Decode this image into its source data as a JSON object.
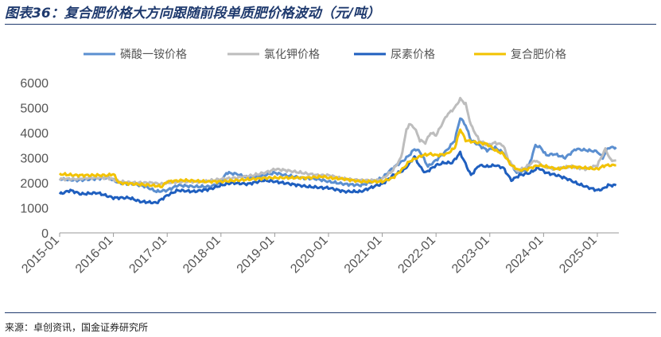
{
  "header": {
    "title": "图表36：复合肥价格大方向跟随前段单质肥价格波动（元/吨）"
  },
  "footer": {
    "source": "来源：卓创资讯，国金证券研究所"
  },
  "chart_data": {
    "type": "line",
    "title": "复合肥价格大方向跟随前段单质肥价格波动（元/吨）",
    "xlabel": "",
    "ylabel": "",
    "ylim": [
      0,
      6000
    ],
    "yticks": [
      0,
      1000,
      2000,
      3000,
      4000,
      5000,
      6000
    ],
    "xlim": [
      2015.0,
      2025.4
    ],
    "xtick_labels": [
      "2015-01",
      "2016-01",
      "2017-01",
      "2018-01",
      "2019-01",
      "2020-01",
      "2021-01",
      "2022-01",
      "2023-01",
      "2024-01",
      "2025-01"
    ],
    "xtick_values": [
      2015,
      2016,
      2017,
      2018,
      2019,
      2020,
      2021,
      2022,
      2023,
      2024,
      2025
    ],
    "legend_position": "top",
    "grid": false,
    "series": [
      {
        "name": "磷酸一铵价格",
        "color": "#5b8fd0",
        "points": [
          [
            2015.0,
            2150
          ],
          [
            2015.3,
            2100
          ],
          [
            2015.6,
            2150
          ],
          [
            2015.9,
            2200
          ],
          [
            2016.1,
            2000
          ],
          [
            2016.4,
            1950
          ],
          [
            2016.6,
            1850
          ],
          [
            2016.8,
            1650
          ],
          [
            2017.0,
            1700
          ],
          [
            2017.2,
            1900
          ],
          [
            2017.5,
            1850
          ],
          [
            2017.8,
            1850
          ],
          [
            2018.0,
            2000
          ],
          [
            2018.1,
            2400
          ],
          [
            2018.3,
            2350
          ],
          [
            2018.5,
            2200
          ],
          [
            2018.8,
            2300
          ],
          [
            2019.0,
            2400
          ],
          [
            2019.2,
            2300
          ],
          [
            2019.5,
            2200
          ],
          [
            2019.8,
            2150
          ],
          [
            2020.0,
            2050
          ],
          [
            2020.3,
            1950
          ],
          [
            2020.6,
            1900
          ],
          [
            2020.9,
            2100
          ],
          [
            2021.0,
            2200
          ],
          [
            2021.2,
            2600
          ],
          [
            2021.4,
            2900
          ],
          [
            2021.5,
            3100
          ],
          [
            2021.6,
            3350
          ],
          [
            2021.7,
            3250
          ],
          [
            2021.85,
            2650
          ],
          [
            2022.0,
            2900
          ],
          [
            2022.2,
            3300
          ],
          [
            2022.35,
            3700
          ],
          [
            2022.45,
            4600
          ],
          [
            2022.55,
            4300
          ],
          [
            2022.65,
            3700
          ],
          [
            2022.8,
            3500
          ],
          [
            2022.95,
            3300
          ],
          [
            2023.1,
            3400
          ],
          [
            2023.25,
            3200
          ],
          [
            2023.35,
            2900
          ],
          [
            2023.5,
            2400
          ],
          [
            2023.7,
            2500
          ],
          [
            2023.85,
            3500
          ],
          [
            2023.95,
            3400
          ],
          [
            2024.05,
            3100
          ],
          [
            2024.2,
            3150
          ],
          [
            2024.4,
            3000
          ],
          [
            2024.6,
            3350
          ],
          [
            2024.8,
            3300
          ],
          [
            2025.0,
            3250
          ],
          [
            2025.1,
            3000
          ],
          [
            2025.2,
            3400
          ],
          [
            2025.35,
            3420
          ]
        ]
      },
      {
        "name": "氯化钾价格",
        "color": "#bdbdbd",
        "points": [
          [
            2015.0,
            2150
          ],
          [
            2015.3,
            2150
          ],
          [
            2015.6,
            2200
          ],
          [
            2015.9,
            2200
          ],
          [
            2016.1,
            2050
          ],
          [
            2016.4,
            2000
          ],
          [
            2016.7,
            2000
          ],
          [
            2016.9,
            1950
          ],
          [
            2017.0,
            2000
          ],
          [
            2017.3,
            2050
          ],
          [
            2017.7,
            2050
          ],
          [
            2018.0,
            2150
          ],
          [
            2018.3,
            2200
          ],
          [
            2018.6,
            2300
          ],
          [
            2018.9,
            2450
          ],
          [
            2019.0,
            2550
          ],
          [
            2019.2,
            2500
          ],
          [
            2019.5,
            2400
          ],
          [
            2019.8,
            2300
          ],
          [
            2020.0,
            2300
          ],
          [
            2020.3,
            2150
          ],
          [
            2020.6,
            2100
          ],
          [
            2020.9,
            2100
          ],
          [
            2021.0,
            2150
          ],
          [
            2021.2,
            2500
          ],
          [
            2021.35,
            3000
          ],
          [
            2021.45,
            4100
          ],
          [
            2021.5,
            4350
          ],
          [
            2021.6,
            4200
          ],
          [
            2021.7,
            3700
          ],
          [
            2021.8,
            3600
          ],
          [
            2021.9,
            4000
          ],
          [
            2022.0,
            3900
          ],
          [
            2022.1,
            4300
          ],
          [
            2022.2,
            4700
          ],
          [
            2022.35,
            5000
          ],
          [
            2022.45,
            5350
          ],
          [
            2022.55,
            5150
          ],
          [
            2022.65,
            4300
          ],
          [
            2022.8,
            3700
          ],
          [
            2022.95,
            3500
          ],
          [
            2023.1,
            3600
          ],
          [
            2023.25,
            3500
          ],
          [
            2023.35,
            2900
          ],
          [
            2023.5,
            2450
          ],
          [
            2023.65,
            2600
          ],
          [
            2023.85,
            2900
          ],
          [
            2024.0,
            2650
          ],
          [
            2024.2,
            2550
          ],
          [
            2024.5,
            2650
          ],
          [
            2024.8,
            2550
          ],
          [
            2025.0,
            2700
          ],
          [
            2025.15,
            3350
          ],
          [
            2025.25,
            2900
          ],
          [
            2025.35,
            2900
          ]
        ]
      },
      {
        "name": "尿素价格",
        "color": "#1f5fbf",
        "points": [
          [
            2015.0,
            1550
          ],
          [
            2015.2,
            1700
          ],
          [
            2015.4,
            1550
          ],
          [
            2015.7,
            1600
          ],
          [
            2016.0,
            1400
          ],
          [
            2016.3,
            1400
          ],
          [
            2016.5,
            1250
          ],
          [
            2016.8,
            1200
          ],
          [
            2017.0,
            1500
          ],
          [
            2017.2,
            1700
          ],
          [
            2017.5,
            1650
          ],
          [
            2017.8,
            1750
          ],
          [
            2018.0,
            1900
          ],
          [
            2018.2,
            2000
          ],
          [
            2018.5,
            1950
          ],
          [
            2018.8,
            2100
          ],
          [
            2019.0,
            2050
          ],
          [
            2019.3,
            1950
          ],
          [
            2019.6,
            1850
          ],
          [
            2019.9,
            1800
          ],
          [
            2020.0,
            1800
          ],
          [
            2020.3,
            1650
          ],
          [
            2020.6,
            1650
          ],
          [
            2020.9,
            1900
          ],
          [
            2021.0,
            1950
          ],
          [
            2021.2,
            2300
          ],
          [
            2021.4,
            2500
          ],
          [
            2021.5,
            2750
          ],
          [
            2021.6,
            3050
          ],
          [
            2021.7,
            2650
          ],
          [
            2021.8,
            2400
          ],
          [
            2021.9,
            2550
          ],
          [
            2022.0,
            2700
          ],
          [
            2022.15,
            2800
          ],
          [
            2022.3,
            2800
          ],
          [
            2022.45,
            3200
          ],
          [
            2022.55,
            2750
          ],
          [
            2022.65,
            2300
          ],
          [
            2022.8,
            2700
          ],
          [
            2022.95,
            2650
          ],
          [
            2023.1,
            2700
          ],
          [
            2023.25,
            2600
          ],
          [
            2023.4,
            2100
          ],
          [
            2023.55,
            2300
          ],
          [
            2023.75,
            2400
          ],
          [
            2023.9,
            2600
          ],
          [
            2024.05,
            2400
          ],
          [
            2024.25,
            2300
          ],
          [
            2024.45,
            2150
          ],
          [
            2024.65,
            1950
          ],
          [
            2024.85,
            1800
          ],
          [
            2025.0,
            1700
          ],
          [
            2025.1,
            1750
          ],
          [
            2025.2,
            1900
          ],
          [
            2025.35,
            1900
          ]
        ]
      },
      {
        "name": "复合肥价格",
        "color": "#f2c200",
        "points": [
          [
            2015.0,
            2350
          ],
          [
            2015.3,
            2300
          ],
          [
            2015.6,
            2300
          ],
          [
            2015.9,
            2300
          ],
          [
            2016.0,
            2350
          ],
          [
            2016.1,
            2000
          ],
          [
            2016.4,
            1950
          ],
          [
            2016.7,
            1900
          ],
          [
            2016.9,
            1850
          ],
          [
            2017.0,
            2050
          ],
          [
            2017.3,
            2100
          ],
          [
            2017.7,
            2050
          ],
          [
            2018.0,
            2050
          ],
          [
            2018.3,
            2100
          ],
          [
            2018.6,
            2150
          ],
          [
            2018.9,
            2200
          ],
          [
            2019.0,
            2200
          ],
          [
            2019.3,
            2200
          ],
          [
            2019.6,
            2200
          ],
          [
            2019.9,
            2250
          ],
          [
            2020.0,
            2200
          ],
          [
            2020.3,
            2150
          ],
          [
            2020.6,
            2050
          ],
          [
            2020.9,
            2050
          ],
          [
            2021.0,
            2050
          ],
          [
            2021.2,
            2200
          ],
          [
            2021.4,
            2600
          ],
          [
            2021.5,
            2850
          ],
          [
            2021.6,
            2950
          ],
          [
            2021.75,
            3100
          ],
          [
            2021.9,
            3150
          ],
          [
            2022.0,
            3100
          ],
          [
            2022.2,
            3150
          ],
          [
            2022.35,
            3400
          ],
          [
            2022.45,
            4150
          ],
          [
            2022.55,
            3700
          ],
          [
            2022.65,
            3650
          ],
          [
            2022.8,
            3600
          ],
          [
            2022.95,
            3550
          ],
          [
            2023.1,
            3300
          ],
          [
            2023.25,
            3150
          ],
          [
            2023.4,
            2700
          ],
          [
            2023.55,
            2500
          ],
          [
            2023.7,
            2550
          ],
          [
            2023.9,
            2700
          ],
          [
            2024.05,
            2650
          ],
          [
            2024.25,
            2550
          ],
          [
            2024.5,
            2650
          ],
          [
            2024.75,
            2600
          ],
          [
            2025.0,
            2550
          ],
          [
            2025.15,
            2700
          ],
          [
            2025.35,
            2700
          ]
        ]
      }
    ]
  }
}
